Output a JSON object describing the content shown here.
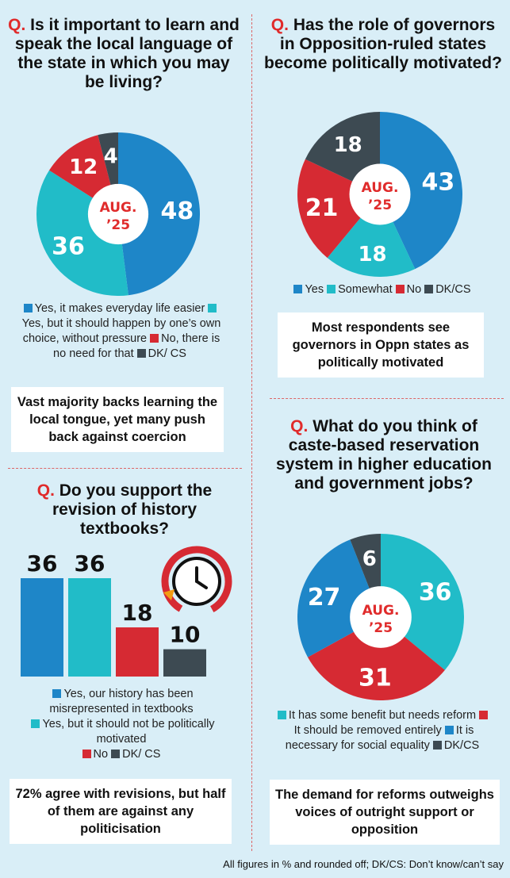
{
  "colors": {
    "blue": "#1e86c8",
    "teal": "#21bcc8",
    "red": "#d62a33",
    "dark": "#3d4a52",
    "accent": "#e02b2b"
  },
  "q_prefix": "Q.",
  "center_label": {
    "line1": "AUG.",
    "line2": "’25"
  },
  "footnote": "All figures in % and rounded off; DK/CS: Don’t know/can’t say",
  "q1": {
    "question": "Is it important to learn and speak the local language of the state in which you may be living?",
    "legend": [
      {
        "label": "Yes, it makes everyday life easier",
        "color": "#1e86c8"
      },
      {
        "label": "Yes, but it should happen by one’s own choice, without pressure",
        "color": "#21bcc8"
      },
      {
        "label": "No, there is no need for that",
        "color": "#d62a33"
      },
      {
        "label": "DK/ CS",
        "color": "#3d4a52"
      }
    ],
    "takeaway": "Vast majority backs learning the local tongue, yet many push back against coercion"
  },
  "q2": {
    "question": "Has the role of governors in Opposition-ruled states become politically motivated?",
    "legend": [
      {
        "label": "Yes",
        "color": "#1e86c8"
      },
      {
        "label": "Somewhat",
        "color": "#21bcc8"
      },
      {
        "label": "No",
        "color": "#d62a33"
      },
      {
        "label": "DK/CS",
        "color": "#3d4a52"
      }
    ],
    "takeaway": "Most respondents see governors in Oppn states as politically motivated"
  },
  "q3": {
    "question": "Do you support the revision of history textbooks?",
    "legend": [
      {
        "label": "Yes, our history has been misrepresented in textbooks",
        "color": "#1e86c8"
      },
      {
        "label": "Yes, but it should not be politically motivated",
        "color": "#21bcc8"
      },
      {
        "label": "No",
        "color": "#d62a33"
      },
      {
        "label": "DK/ CS",
        "color": "#3d4a52"
      }
    ],
    "takeaway": "72% agree with revisions, but half of them are against any politicisation"
  },
  "q4": {
    "question": "What do you think of caste-based reservation system in higher education and government jobs?",
    "legend": [
      {
        "label": "It has some benefit but needs reform",
        "color": "#21bcc8"
      },
      {
        "label": "It should be removed entirely",
        "color": "#d62a33"
      },
      {
        "label": "It is necessary for social equality",
        "color": "#1e86c8"
      },
      {
        "label": "DK/CS",
        "color": "#3d4a52"
      }
    ],
    "takeaway": "The demand for reforms outweighs voices of outright support or opposition"
  },
  "chart_data": [
    {
      "id": "q1",
      "type": "pie",
      "values": [
        48,
        36,
        12,
        4
      ],
      "labels": [
        "Yes, it makes everyday life easier",
        "Yes, but it should happen by one’s own choice, without pressure",
        "No, there is no need for that",
        "DK/ CS"
      ],
      "colors": [
        "#1e86c8",
        "#21bcc8",
        "#d62a33",
        "#3d4a52"
      ]
    },
    {
      "id": "q2",
      "type": "pie",
      "values": [
        43,
        18,
        21,
        18
      ],
      "labels": [
        "Yes",
        "Somewhat",
        "No",
        "DK/CS"
      ],
      "colors": [
        "#1e86c8",
        "#21bcc8",
        "#d62a33",
        "#3d4a52"
      ]
    },
    {
      "id": "q3",
      "type": "bar",
      "values": [
        36,
        36,
        18,
        10
      ],
      "categories": [
        "Yes, our history has been misrepresented in textbooks",
        "Yes, but it should not be politically motivated",
        "No",
        "DK/ CS"
      ],
      "colors": [
        "#1e86c8",
        "#21bcc8",
        "#d62a33",
        "#3d4a52"
      ]
    },
    {
      "id": "q4",
      "type": "pie",
      "values": [
        36,
        31,
        27,
        6
      ],
      "labels": [
        "It has some benefit but needs reform",
        "It should be removed entirely",
        "It is necessary for social equality",
        "DK/CS"
      ],
      "colors": [
        "#21bcc8",
        "#d62a33",
        "#1e86c8",
        "#3d4a52"
      ]
    }
  ]
}
